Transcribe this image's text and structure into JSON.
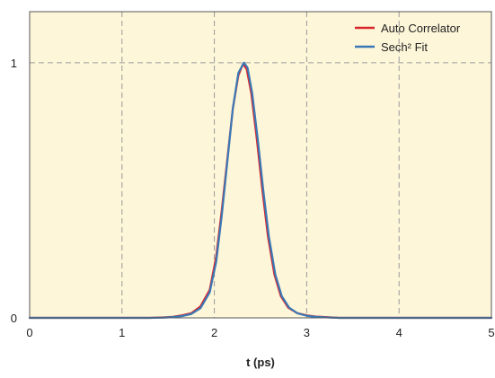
{
  "chart_data": {
    "type": "line",
    "title": "",
    "xlabel": "t (ps)",
    "ylabel": "",
    "xlim": [
      0,
      5
    ],
    "ylim": [
      0,
      1.2
    ],
    "x_ticks": [
      0,
      1,
      2,
      3,
      4,
      5
    ],
    "x_tick_labels": [
      "0",
      "1",
      "2",
      "3",
      "4",
      "5"
    ],
    "y_ticks": [
      0,
      1
    ],
    "y_tick_labels": [
      "0",
      "1"
    ],
    "grid": true,
    "grid_style": "dashed",
    "legend_position": "top-right",
    "plot_background": "#fdf6d9",
    "series": [
      {
        "name": "Auto Correlator",
        "color": "#d7262b",
        "points": [
          [
            0.0,
            0.0
          ],
          [
            0.5,
            0.0
          ],
          [
            1.0,
            0.0
          ],
          [
            1.3,
            0.0
          ],
          [
            1.45,
            0.002
          ],
          [
            1.55,
            0.004
          ],
          [
            1.65,
            0.01
          ],
          [
            1.75,
            0.018
          ],
          [
            1.85,
            0.045
          ],
          [
            1.95,
            0.11
          ],
          [
            2.02,
            0.24
          ],
          [
            2.08,
            0.42
          ],
          [
            2.14,
            0.62
          ],
          [
            2.2,
            0.82
          ],
          [
            2.26,
            0.95
          ],
          [
            2.31,
            0.995
          ],
          [
            2.35,
            0.975
          ],
          [
            2.4,
            0.88
          ],
          [
            2.46,
            0.7
          ],
          [
            2.52,
            0.5
          ],
          [
            2.58,
            0.32
          ],
          [
            2.65,
            0.17
          ],
          [
            2.72,
            0.085
          ],
          [
            2.8,
            0.04
          ],
          [
            2.9,
            0.018
          ],
          [
            3.0,
            0.01
          ],
          [
            3.1,
            0.005
          ],
          [
            3.2,
            0.003
          ],
          [
            3.35,
            0.0
          ],
          [
            4.0,
            0.0
          ],
          [
            5.0,
            0.0
          ]
        ]
      },
      {
        "name": "Sech² Fit",
        "color": "#3a78b5",
        "points": [
          [
            0.0,
            0.0
          ],
          [
            0.5,
            0.0
          ],
          [
            1.0,
            0.0
          ],
          [
            1.3,
            0.0
          ],
          [
            1.45,
            0.001
          ],
          [
            1.55,
            0.003
          ],
          [
            1.65,
            0.007
          ],
          [
            1.75,
            0.015
          ],
          [
            1.85,
            0.038
          ],
          [
            1.95,
            0.1
          ],
          [
            2.02,
            0.22
          ],
          [
            2.08,
            0.4
          ],
          [
            2.14,
            0.61
          ],
          [
            2.2,
            0.82
          ],
          [
            2.26,
            0.96
          ],
          [
            2.32,
            1.0
          ],
          [
            2.36,
            0.98
          ],
          [
            2.41,
            0.88
          ],
          [
            2.47,
            0.7
          ],
          [
            2.53,
            0.5
          ],
          [
            2.59,
            0.32
          ],
          [
            2.66,
            0.17
          ],
          [
            2.73,
            0.085
          ],
          [
            2.81,
            0.04
          ],
          [
            2.9,
            0.018
          ],
          [
            3.0,
            0.008
          ],
          [
            3.1,
            0.004
          ],
          [
            3.2,
            0.002
          ],
          [
            3.35,
            0.0
          ],
          [
            4.0,
            0.0
          ],
          [
            5.0,
            0.0
          ]
        ]
      }
    ]
  }
}
